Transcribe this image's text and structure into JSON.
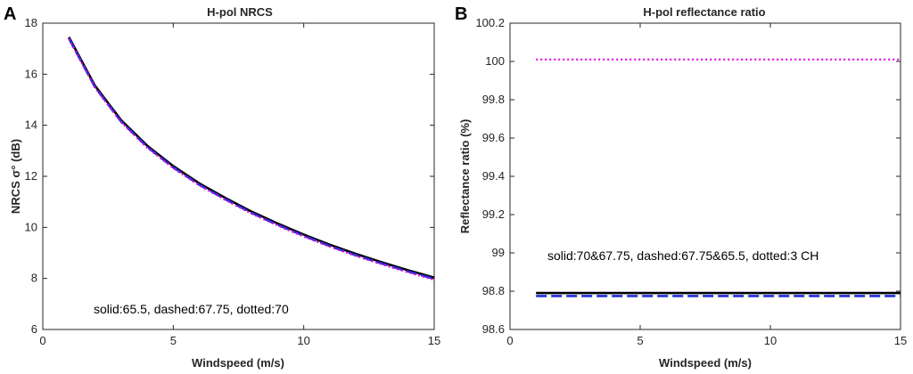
{
  "chart_data": [
    {
      "panel": "A",
      "type": "line",
      "title": "H-pol NRCS",
      "xlabel": "Windspeed (m/s)",
      "ylabel": "NRCS σ° (dB)",
      "xlim": [
        0,
        15
      ],
      "ylim": [
        6,
        18
      ],
      "xticks": [
        0,
        5,
        10,
        15
      ],
      "yticks": [
        6,
        8,
        10,
        12,
        14,
        16,
        18
      ],
      "annotation": "solid:65.5, dashed:67.75, dotted:70",
      "x": [
        1,
        2,
        3,
        4,
        5,
        6,
        7,
        8,
        9,
        10,
        11,
        12,
        13,
        14,
        15
      ],
      "series": [
        {
          "name": "solid:65.5",
          "style": "solid",
          "color": "#000000",
          "values": [
            17.45,
            15.55,
            14.2,
            13.2,
            12.4,
            11.72,
            11.15,
            10.62,
            10.15,
            9.72,
            9.32,
            8.96,
            8.63,
            8.32,
            8.03
          ]
        },
        {
          "name": "dashed:67.75",
          "style": "dashed",
          "color": "#1f2fd6",
          "values": [
            17.4,
            15.5,
            14.15,
            13.15,
            12.35,
            11.67,
            11.1,
            10.57,
            10.1,
            9.67,
            9.27,
            8.91,
            8.58,
            8.27,
            7.98
          ]
        },
        {
          "name": "dotted:70",
          "style": "dotted",
          "color": "#e000e0",
          "values": [
            17.38,
            15.47,
            14.12,
            13.12,
            12.32,
            11.64,
            11.07,
            10.54,
            10.07,
            9.64,
            9.24,
            8.88,
            8.55,
            8.24,
            7.95
          ]
        }
      ]
    },
    {
      "panel": "B",
      "type": "line",
      "title": "H-pol reflectance ratio",
      "xlabel": "Windspeed (m/s)",
      "ylabel": "Reflectance ratio (%)",
      "xlim": [
        0,
        15
      ],
      "ylim": [
        98.6,
        100.2
      ],
      "xticks": [
        0,
        5,
        10,
        15
      ],
      "yticks": [
        98.6,
        98.8,
        99,
        99.2,
        99.4,
        99.6,
        99.8,
        100,
        100.2
      ],
      "annotation": "solid:70&67.75, dashed:67.75&65.5, dotted:3 CH",
      "x": [
        1,
        15
      ],
      "series": [
        {
          "name": "solid:70&67.75",
          "style": "solid",
          "color": "#000000",
          "values": [
            98.79,
            98.79
          ]
        },
        {
          "name": "dashed:67.75&65.5",
          "style": "dashed",
          "color": "#1f2fd6",
          "values": [
            98.775,
            98.775
          ]
        },
        {
          "name": "dotted:3 CH",
          "style": "dotted",
          "color": "#e000e0",
          "values": [
            100.01,
            100.01
          ]
        }
      ]
    }
  ]
}
